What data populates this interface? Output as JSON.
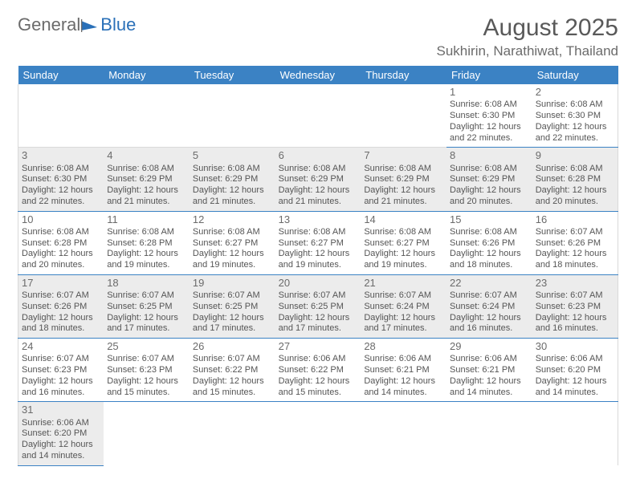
{
  "brand": {
    "part1": "General",
    "part2": "Blue"
  },
  "title": "August 2025",
  "subtitle": "Sukhirin, Narathiwat, Thailand",
  "colors": {
    "header_bg": "#3b82c4",
    "header_fg": "#ffffff",
    "shade": "#ececec",
    "rule": "#3b82c4"
  },
  "days": [
    "Sunday",
    "Monday",
    "Tuesday",
    "Wednesday",
    "Thursday",
    "Friday",
    "Saturday"
  ],
  "weeks": [
    [
      null,
      null,
      null,
      null,
      null,
      {
        "n": "1",
        "sr": "6:08 AM",
        "ss": "6:30 PM",
        "dl": "12 hours and 22 minutes."
      },
      {
        "n": "2",
        "sr": "6:08 AM",
        "ss": "6:30 PM",
        "dl": "12 hours and 22 minutes."
      }
    ],
    [
      {
        "n": "3",
        "sr": "6:08 AM",
        "ss": "6:30 PM",
        "dl": "12 hours and 22 minutes.",
        "shade": true
      },
      {
        "n": "4",
        "sr": "6:08 AM",
        "ss": "6:29 PM",
        "dl": "12 hours and 21 minutes.",
        "shade": true
      },
      {
        "n": "5",
        "sr": "6:08 AM",
        "ss": "6:29 PM",
        "dl": "12 hours and 21 minutes.",
        "shade": true
      },
      {
        "n": "6",
        "sr": "6:08 AM",
        "ss": "6:29 PM",
        "dl": "12 hours and 21 minutes.",
        "shade": true
      },
      {
        "n": "7",
        "sr": "6:08 AM",
        "ss": "6:29 PM",
        "dl": "12 hours and 21 minutes.",
        "shade": true
      },
      {
        "n": "8",
        "sr": "6:08 AM",
        "ss": "6:29 PM",
        "dl": "12 hours and 20 minutes.",
        "shade": true
      },
      {
        "n": "9",
        "sr": "6:08 AM",
        "ss": "6:28 PM",
        "dl": "12 hours and 20 minutes.",
        "shade": true
      }
    ],
    [
      {
        "n": "10",
        "sr": "6:08 AM",
        "ss": "6:28 PM",
        "dl": "12 hours and 20 minutes."
      },
      {
        "n": "11",
        "sr": "6:08 AM",
        "ss": "6:28 PM",
        "dl": "12 hours and 19 minutes."
      },
      {
        "n": "12",
        "sr": "6:08 AM",
        "ss": "6:27 PM",
        "dl": "12 hours and 19 minutes."
      },
      {
        "n": "13",
        "sr": "6:08 AM",
        "ss": "6:27 PM",
        "dl": "12 hours and 19 minutes."
      },
      {
        "n": "14",
        "sr": "6:08 AM",
        "ss": "6:27 PM",
        "dl": "12 hours and 19 minutes."
      },
      {
        "n": "15",
        "sr": "6:08 AM",
        "ss": "6:26 PM",
        "dl": "12 hours and 18 minutes."
      },
      {
        "n": "16",
        "sr": "6:07 AM",
        "ss": "6:26 PM",
        "dl": "12 hours and 18 minutes."
      }
    ],
    [
      {
        "n": "17",
        "sr": "6:07 AM",
        "ss": "6:26 PM",
        "dl": "12 hours and 18 minutes.",
        "shade": true
      },
      {
        "n": "18",
        "sr": "6:07 AM",
        "ss": "6:25 PM",
        "dl": "12 hours and 17 minutes.",
        "shade": true
      },
      {
        "n": "19",
        "sr": "6:07 AM",
        "ss": "6:25 PM",
        "dl": "12 hours and 17 minutes.",
        "shade": true
      },
      {
        "n": "20",
        "sr": "6:07 AM",
        "ss": "6:25 PM",
        "dl": "12 hours and 17 minutes.",
        "shade": true
      },
      {
        "n": "21",
        "sr": "6:07 AM",
        "ss": "6:24 PM",
        "dl": "12 hours and 17 minutes.",
        "shade": true
      },
      {
        "n": "22",
        "sr": "6:07 AM",
        "ss": "6:24 PM",
        "dl": "12 hours and 16 minutes.",
        "shade": true
      },
      {
        "n": "23",
        "sr": "6:07 AM",
        "ss": "6:23 PM",
        "dl": "12 hours and 16 minutes.",
        "shade": true
      }
    ],
    [
      {
        "n": "24",
        "sr": "6:07 AM",
        "ss": "6:23 PM",
        "dl": "12 hours and 16 minutes."
      },
      {
        "n": "25",
        "sr": "6:07 AM",
        "ss": "6:23 PM",
        "dl": "12 hours and 15 minutes."
      },
      {
        "n": "26",
        "sr": "6:07 AM",
        "ss": "6:22 PM",
        "dl": "12 hours and 15 minutes."
      },
      {
        "n": "27",
        "sr": "6:06 AM",
        "ss": "6:22 PM",
        "dl": "12 hours and 15 minutes."
      },
      {
        "n": "28",
        "sr": "6:06 AM",
        "ss": "6:21 PM",
        "dl": "12 hours and 14 minutes."
      },
      {
        "n": "29",
        "sr": "6:06 AM",
        "ss": "6:21 PM",
        "dl": "12 hours and 14 minutes."
      },
      {
        "n": "30",
        "sr": "6:06 AM",
        "ss": "6:20 PM",
        "dl": "12 hours and 14 minutes."
      }
    ],
    [
      {
        "n": "31",
        "sr": "6:06 AM",
        "ss": "6:20 PM",
        "dl": "12 hours and 14 minutes.",
        "shade": true
      },
      null,
      null,
      null,
      null,
      null,
      null
    ]
  ],
  "labels": {
    "sunrise": "Sunrise: ",
    "sunset": "Sunset: ",
    "daylight": "Daylight: "
  }
}
